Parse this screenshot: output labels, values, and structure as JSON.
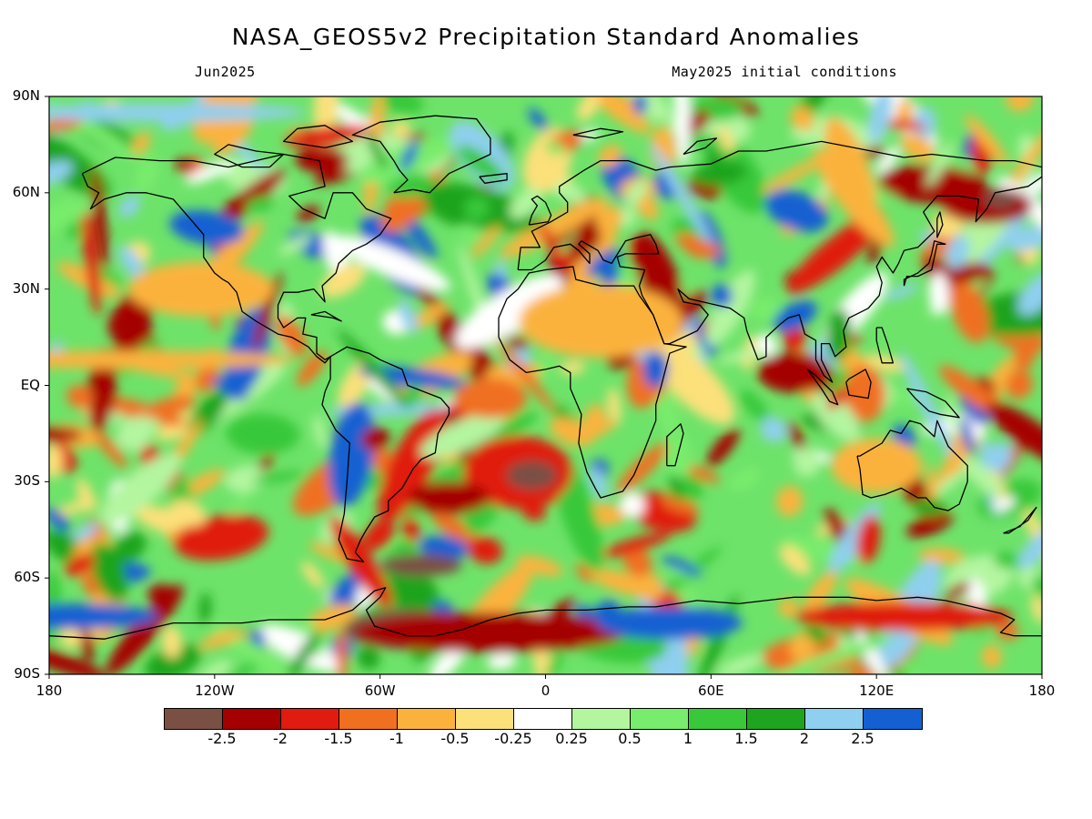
{
  "header": {
    "title": "NASA_GEOS5v2 Precipitation Standard Anomalies",
    "valid_month": "Jun2025",
    "init_conditions": "May2025 initial conditions"
  },
  "axes": {
    "lat_labels": [
      "90N",
      "60N",
      "30N",
      "EQ",
      "30S",
      "60S",
      "90S"
    ],
    "lon_labels": [
      "180",
      "120W",
      "60W",
      "0",
      "60E",
      "120E",
      "180"
    ]
  },
  "legend": {
    "colors": [
      "#7a5044",
      "#a50000",
      "#e01b10",
      "#f07020",
      "#fbb23d",
      "#fce07a",
      "#ffffff",
      "#b4f5a0",
      "#78ec6c",
      "#38c83a",
      "#1ea41e",
      "#8fcfef",
      "#1460d2"
    ],
    "labels": [
      "-2.5",
      "-2",
      "-1.5",
      "-1",
      "-0.5",
      "-0.25",
      "0.25",
      "0.5",
      "1",
      "1.5",
      "2",
      "2.5"
    ]
  }
}
